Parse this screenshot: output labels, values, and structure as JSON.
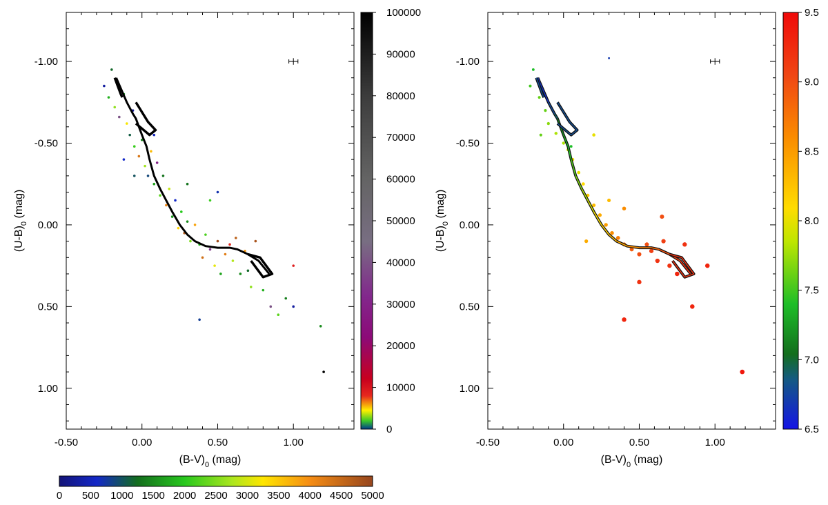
{
  "chart_data": [
    {
      "type": "scatter",
      "xlabel": "(B-V)",
      "xlabel_sub": "0",
      "xlabel_unit": " (mag)",
      "ylabel": "(U-B)",
      "ylabel_sub": "0",
      "ylabel_unit": " (mag)",
      "xlim": [
        -0.5,
        1.4
      ],
      "ylim": [
        1.25,
        -1.3
      ],
      "y_inverted": true,
      "x_ticks": [
        -0.5,
        0,
        0.5,
        1
      ],
      "x_tick_labels": [
        "-0.50",
        "0.00",
        "0.50",
        "1.00"
      ],
      "y_ticks": [
        -1,
        -0.5,
        0,
        0.5,
        1
      ],
      "y_tick_labels": [
        "-1.00",
        "-0.50",
        "0.00",
        "0.50",
        "1.00"
      ],
      "colorbar": {
        "label_values": [
          0,
          10000,
          20000,
          30000,
          40000,
          50000,
          60000,
          70000,
          80000,
          90000,
          100000
        ],
        "labels": [
          "0",
          "10000",
          "20000",
          "30000",
          "40000",
          "50000",
          "60000",
          "70000",
          "80000",
          "90000",
          "100000"
        ]
      },
      "colorbar_horizontal": {
        "label_values": [
          0,
          500,
          1000,
          1500,
          2000,
          2500,
          3000,
          3500,
          4000,
          4500,
          5000
        ],
        "labels": [
          "0",
          "500",
          "1000",
          "1500",
          "2000",
          "2500",
          "3000",
          "3500",
          "4000",
          "4500",
          "5000"
        ]
      },
      "error_bar": {
        "x": 1.0,
        "y": -1.0,
        "xerr": 0.03,
        "yerr": 0.02
      },
      "isochrone": [
        [
          -0.17,
          -0.9
        ],
        [
          -0.1,
          -0.75
        ],
        [
          -0.06,
          -0.68
        ],
        [
          -0.04,
          -0.65
        ],
        [
          -0.02,
          -0.6
        ],
        [
          0.0,
          -0.55
        ],
        [
          0.03,
          -0.48
        ],
        [
          0.05,
          -0.4
        ],
        [
          0.08,
          -0.3
        ],
        [
          0.12,
          -0.22
        ],
        [
          0.16,
          -0.15
        ],
        [
          0.2,
          -0.08
        ],
        [
          0.25,
          0.0
        ],
        [
          0.3,
          0.06
        ],
        [
          0.35,
          0.1
        ],
        [
          0.42,
          0.13
        ],
        [
          0.5,
          0.14
        ],
        [
          0.58,
          0.14
        ],
        [
          0.63,
          0.15
        ],
        [
          0.7,
          0.18
        ],
        [
          0.77,
          0.22
        ],
        [
          0.84,
          0.3
        ]
      ],
      "loops": [
        [
          [
            -0.18,
            -0.9
          ],
          [
            -0.16,
            -0.85
          ],
          [
            -0.14,
            -0.8
          ],
          [
            -0.13,
            -0.78
          ]
        ],
        [
          [
            -0.04,
            -0.75
          ],
          [
            -0.02,
            -0.72
          ],
          [
            0.04,
            -0.63
          ],
          [
            0.09,
            -0.58
          ],
          [
            0.05,
            -0.55
          ],
          [
            -0.04,
            -0.62
          ]
        ],
        [
          [
            0.7,
            0.18
          ],
          [
            0.78,
            0.2
          ],
          [
            0.86,
            0.3
          ],
          [
            0.8,
            0.32
          ],
          [
            0.72,
            0.22
          ]
        ]
      ],
      "points": [
        {
          "x": -0.2,
          "y": -0.95,
          "v": 1200
        },
        {
          "x": -0.25,
          "y": -0.85,
          "v": 300
        },
        {
          "x": -0.22,
          "y": -0.78,
          "v": 1800
        },
        {
          "x": -0.18,
          "y": -0.72,
          "v": 2600
        },
        {
          "x": -0.15,
          "y": -0.66,
          "v": 40000
        },
        {
          "x": -0.12,
          "y": -0.8,
          "v": 1500
        },
        {
          "x": -0.1,
          "y": -0.62,
          "v": 3200
        },
        {
          "x": -0.08,
          "y": -0.55,
          "v": 1100
        },
        {
          "x": -0.06,
          "y": -0.7,
          "v": 200
        },
        {
          "x": -0.05,
          "y": -0.48,
          "v": 2100
        },
        {
          "x": -0.02,
          "y": -0.42,
          "v": 4300
        },
        {
          "x": 0.0,
          "y": -0.52,
          "v": 1400
        },
        {
          "x": 0.02,
          "y": -0.36,
          "v": 2700
        },
        {
          "x": 0.04,
          "y": -0.3,
          "v": 900
        },
        {
          "x": 0.06,
          "y": -0.45,
          "v": 3600
        },
        {
          "x": 0.08,
          "y": -0.25,
          "v": 1700
        },
        {
          "x": 0.1,
          "y": -0.38,
          "v": 30000
        },
        {
          "x": 0.12,
          "y": -0.18,
          "v": 2300
        },
        {
          "x": 0.14,
          "y": -0.3,
          "v": 1300
        },
        {
          "x": 0.16,
          "y": -0.12,
          "v": 4100
        },
        {
          "x": 0.18,
          "y": -0.22,
          "v": 2900
        },
        {
          "x": 0.2,
          "y": -0.05,
          "v": 1600
        },
        {
          "x": 0.22,
          "y": -0.15,
          "v": 600
        },
        {
          "x": 0.24,
          "y": 0.02,
          "v": 3400
        },
        {
          "x": 0.26,
          "y": -0.08,
          "v": 2000
        },
        {
          "x": 0.28,
          "y": 0.05,
          "v": 4700
        },
        {
          "x": 0.3,
          "y": -0.02,
          "v": 1500
        },
        {
          "x": 0.32,
          "y": 0.1,
          "v": 2500
        },
        {
          "x": 0.35,
          "y": 0.0,
          "v": 3800
        },
        {
          "x": 0.38,
          "y": 0.12,
          "v": 1900
        },
        {
          "x": 0.4,
          "y": 0.2,
          "v": 4400
        },
        {
          "x": 0.42,
          "y": 0.06,
          "v": 2200
        },
        {
          "x": 0.45,
          "y": 0.15,
          "v": 35000
        },
        {
          "x": 0.48,
          "y": 0.25,
          "v": 3100
        },
        {
          "x": 0.5,
          "y": 0.1,
          "v": 4900
        },
        {
          "x": 0.52,
          "y": 0.3,
          "v": 1700
        },
        {
          "x": 0.55,
          "y": 0.18,
          "v": 4200
        },
        {
          "x": 0.58,
          "y": 0.12,
          "v": 8000
        },
        {
          "x": 0.6,
          "y": 0.22,
          "v": 2800
        },
        {
          "x": 0.62,
          "y": 0.08,
          "v": 4600
        },
        {
          "x": 0.65,
          "y": 0.3,
          "v": 1500
        },
        {
          "x": 0.68,
          "y": 0.16,
          "v": 3900
        },
        {
          "x": 0.7,
          "y": 0.28,
          "v": 1200
        },
        {
          "x": 0.72,
          "y": 0.38,
          "v": 2600
        },
        {
          "x": 0.75,
          "y": 0.1,
          "v": 4800
        },
        {
          "x": 0.8,
          "y": 0.4,
          "v": 1800
        },
        {
          "x": 0.85,
          "y": 0.5,
          "v": 40000
        },
        {
          "x": 0.9,
          "y": 0.55,
          "v": 2300
        },
        {
          "x": 0.95,
          "y": 0.45,
          "v": 1400
        },
        {
          "x": 1.0,
          "y": 0.25,
          "v": 9000
        },
        {
          "x": 1.0,
          "y": 0.5,
          "v": 300
        },
        {
          "x": 1.18,
          "y": 0.62,
          "v": 1500
        },
        {
          "x": 1.2,
          "y": 0.9,
          "v": 100000
        },
        {
          "x": 0.38,
          "y": 0.58,
          "v": 800
        },
        {
          "x": -0.12,
          "y": -0.4,
          "v": 600
        },
        {
          "x": -0.05,
          "y": -0.3,
          "v": 1000
        },
        {
          "x": 0.08,
          "y": -0.55,
          "v": 500
        },
        {
          "x": 0.3,
          "y": -0.25,
          "v": 1300
        },
        {
          "x": 0.5,
          "y": -0.2,
          "v": 700
        },
        {
          "x": 0.45,
          "y": -0.15,
          "v": 2100
        }
      ]
    },
    {
      "type": "scatter",
      "xlabel": "(B-V)",
      "xlabel_sub": "0",
      "xlabel_unit": " (mag)",
      "ylabel": "(U-B)",
      "ylabel_sub": "0",
      "ylabel_unit": " (mag)",
      "xlim": [
        -0.5,
        1.4
      ],
      "ylim": [
        1.25,
        -1.3
      ],
      "y_inverted": true,
      "x_ticks": [
        -0.5,
        0,
        0.5,
        1
      ],
      "x_tick_labels": [
        "-0.50",
        "0.00",
        "0.50",
        "1.00"
      ],
      "y_ticks": [
        -1,
        -0.5,
        0,
        0.5,
        1
      ],
      "y_tick_labels": [
        "-1.00",
        "-0.50",
        "0.00",
        "0.50",
        "1.00"
      ],
      "colorbar": {
        "range": [
          6.5,
          9.5
        ],
        "label_values": [
          6.5,
          7.0,
          7.5,
          8.0,
          8.5,
          9.0,
          9.5
        ],
        "labels": [
          "6.5",
          "7.0",
          "7.5",
          "8.0",
          "8.5",
          "9.0",
          "9.5"
        ]
      },
      "error_bar": {
        "x": 1.0,
        "y": -1.0,
        "xerr": 0.03,
        "yerr": 0.02
      },
      "isochrone": [
        [
          -0.17,
          -0.9
        ],
        [
          -0.1,
          -0.75
        ],
        [
          -0.06,
          -0.68
        ],
        [
          -0.04,
          -0.65
        ],
        [
          -0.02,
          -0.6
        ],
        [
          0.0,
          -0.55
        ],
        [
          0.03,
          -0.48
        ],
        [
          0.05,
          -0.4
        ],
        [
          0.08,
          -0.3
        ],
        [
          0.12,
          -0.22
        ],
        [
          0.16,
          -0.15
        ],
        [
          0.2,
          -0.08
        ],
        [
          0.25,
          0.0
        ],
        [
          0.3,
          0.06
        ],
        [
          0.35,
          0.1
        ],
        [
          0.42,
          0.13
        ],
        [
          0.5,
          0.14
        ],
        [
          0.58,
          0.14
        ],
        [
          0.63,
          0.15
        ],
        [
          0.7,
          0.18
        ],
        [
          0.77,
          0.22
        ],
        [
          0.84,
          0.3
        ]
      ],
      "loops": [
        [
          [
            -0.18,
            -0.9
          ],
          [
            -0.16,
            -0.85
          ],
          [
            -0.14,
            -0.8
          ],
          [
            -0.13,
            -0.78
          ]
        ],
        [
          [
            -0.04,
            -0.75
          ],
          [
            -0.02,
            -0.72
          ],
          [
            0.04,
            -0.63
          ],
          [
            0.09,
            -0.58
          ],
          [
            0.05,
            -0.55
          ],
          [
            -0.04,
            -0.62
          ]
        ],
        [
          [
            0.7,
            0.18
          ],
          [
            0.78,
            0.2
          ],
          [
            0.86,
            0.3
          ],
          [
            0.8,
            0.32
          ],
          [
            0.72,
            0.22
          ]
        ]
      ],
      "points": [
        {
          "x": -0.2,
          "y": -0.95,
          "v": 7.4
        },
        {
          "x": -0.22,
          "y": -0.85,
          "v": 7.5
        },
        {
          "x": -0.16,
          "y": -0.78,
          "v": 7.6
        },
        {
          "x": -0.12,
          "y": -0.7,
          "v": 7.6
        },
        {
          "x": -0.1,
          "y": -0.62,
          "v": 7.7
        },
        {
          "x": -0.05,
          "y": -0.56,
          "v": 7.8
        },
        {
          "x": 0.0,
          "y": -0.5,
          "v": 7.8
        },
        {
          "x": 0.03,
          "y": -0.46,
          "v": 7.9
        },
        {
          "x": 0.06,
          "y": -0.4,
          "v": 8.0
        },
        {
          "x": 0.1,
          "y": -0.32,
          "v": 8.0
        },
        {
          "x": 0.13,
          "y": -0.25,
          "v": 8.1
        },
        {
          "x": 0.16,
          "y": -0.18,
          "v": 8.2
        },
        {
          "x": 0.2,
          "y": -0.12,
          "v": 8.3
        },
        {
          "x": 0.24,
          "y": -0.06,
          "v": 8.4
        },
        {
          "x": 0.28,
          "y": 0.0,
          "v": 8.5
        },
        {
          "x": 0.3,
          "y": -0.15,
          "v": 8.3
        },
        {
          "x": 0.32,
          "y": 0.05,
          "v": 8.6
        },
        {
          "x": 0.36,
          "y": 0.08,
          "v": 8.7
        },
        {
          "x": 0.4,
          "y": 0.12,
          "v": 8.8
        },
        {
          "x": 0.45,
          "y": 0.15,
          "v": 8.9
        },
        {
          "x": 0.5,
          "y": 0.18,
          "v": 9.0
        },
        {
          "x": 0.55,
          "y": 0.12,
          "v": 9.0
        },
        {
          "x": 0.58,
          "y": 0.16,
          "v": 9.1
        },
        {
          "x": 0.62,
          "y": 0.22,
          "v": 9.2
        },
        {
          "x": 0.66,
          "y": 0.1,
          "v": 9.1
        },
        {
          "x": 0.7,
          "y": 0.25,
          "v": 9.2
        },
        {
          "x": 0.75,
          "y": 0.3,
          "v": 9.3
        },
        {
          "x": 0.8,
          "y": 0.12,
          "v": 9.2
        },
        {
          "x": 0.85,
          "y": 0.5,
          "v": 9.3
        },
        {
          "x": 0.95,
          "y": 0.25,
          "v": 9.3
        },
        {
          "x": 0.4,
          "y": 0.58,
          "v": 9.3
        },
        {
          "x": 1.18,
          "y": 0.9,
          "v": 9.4
        },
        {
          "x": 0.3,
          "y": -1.02,
          "v": 6.7
        },
        {
          "x": 0.05,
          "y": -0.48,
          "v": 7.4
        },
        {
          "x": -0.15,
          "y": -0.55,
          "v": 7.6
        },
        {
          "x": 0.2,
          "y": -0.55,
          "v": 8.0
        },
        {
          "x": 0.4,
          "y": -0.1,
          "v": 8.6
        },
        {
          "x": 0.65,
          "y": -0.05,
          "v": 9.0
        },
        {
          "x": 0.15,
          "y": 0.1,
          "v": 8.4
        },
        {
          "x": 0.5,
          "y": 0.35,
          "v": 9.2
        }
      ]
    }
  ]
}
